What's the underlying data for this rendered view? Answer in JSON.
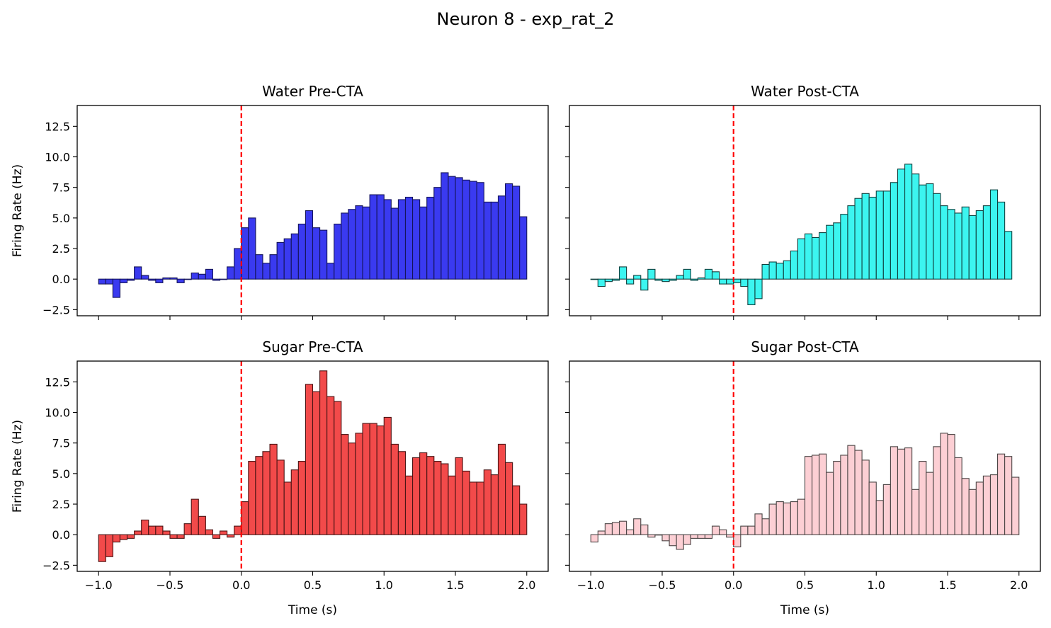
{
  "figure_title": "Neuron 8 - exp_rat_2",
  "chart_data": [
    {
      "type": "bar",
      "title": "Water Pre-CTA",
      "xlabel": "",
      "ylabel": "Firing Rate (Hz)",
      "xlim": [
        -1.15,
        2.15
      ],
      "ylim": [
        -3.0,
        14.2
      ],
      "xticks": [
        -1.0,
        -0.5,
        0.0,
        0.5,
        1.0,
        1.5,
        2.0
      ],
      "xtick_labels": [],
      "yticks": [
        -2.5,
        0.0,
        2.5,
        5.0,
        7.5,
        10.0,
        12.5
      ],
      "ytick_labels": [
        "−2.5",
        "0.0",
        "2.5",
        "5.0",
        "7.5",
        "10.0",
        "12.5"
      ],
      "bin_start": -1.0,
      "bin_width": 0.05,
      "values": [
        -0.4,
        -0.4,
        -1.5,
        -0.3,
        -0.1,
        1.0,
        0.3,
        -0.1,
        -0.3,
        0.1,
        0.1,
        -0.3,
        0.0,
        0.5,
        0.4,
        0.8,
        -0.1,
        0.0,
        1.0,
        2.5,
        4.2,
        5.0,
        2.0,
        1.3,
        2.0,
        3.0,
        3.3,
        3.7,
        4.5,
        5.6,
        4.2,
        4.0,
        1.3,
        4.5,
        5.4,
        5.7,
        6.0,
        5.9,
        6.9,
        6.9,
        6.5,
        5.8,
        6.5,
        6.7,
        6.5,
        5.9,
        6.7,
        7.5,
        8.7,
        8.4,
        8.3,
        8.1,
        8.0,
        7.9,
        6.3,
        6.3,
        6.8,
        7.8,
        7.6,
        5.1
      ],
      "vline_x": 0.0,
      "color": "#3a3af0"
    },
    {
      "type": "bar",
      "title": "Water Post-CTA",
      "xlabel": "",
      "ylabel": "",
      "xlim": [
        -1.15,
        2.15
      ],
      "ylim": [
        -3.0,
        14.2
      ],
      "xticks": [
        -1.0,
        -0.5,
        0.0,
        0.5,
        1.0,
        1.5,
        2.0
      ],
      "xtick_labels": [],
      "yticks": [
        -2.5,
        0.0,
        2.5,
        5.0,
        7.5,
        10.0,
        12.5
      ],
      "ytick_labels": [],
      "bin_start": -1.0,
      "bin_width": 0.05,
      "values": [
        0.0,
        -0.6,
        -0.2,
        -0.1,
        1.0,
        -0.4,
        0.3,
        -0.9,
        0.8,
        -0.1,
        -0.2,
        -0.1,
        0.3,
        0.8,
        -0.1,
        0.1,
        0.8,
        0.6,
        -0.4,
        -0.4,
        -0.3,
        -0.6,
        -2.1,
        -1.6,
        1.2,
        1.4,
        1.3,
        1.5,
        2.3,
        3.3,
        3.7,
        3.4,
        3.8,
        4.4,
        4.6,
        5.3,
        6.0,
        6.6,
        7.0,
        6.7,
        7.2,
        7.2,
        7.9,
        9.0,
        9.4,
        8.6,
        7.7,
        7.8,
        7.0,
        6.0,
        5.7,
        5.4,
        5.9,
        5.2,
        5.6,
        6.0,
        7.3,
        6.3,
        3.9
      ],
      "vline_x": 0.0,
      "color": "#3cf5f0"
    },
    {
      "type": "bar",
      "title": "Sugar Pre-CTA",
      "xlabel": "Time (s)",
      "ylabel": "Firing Rate (Hz)",
      "xlim": [
        -1.15,
        2.15
      ],
      "ylim": [
        -3.0,
        14.2
      ],
      "xticks": [
        -1.0,
        -0.5,
        0.0,
        0.5,
        1.0,
        1.5,
        2.0
      ],
      "xtick_labels": [
        "−1.0",
        "−0.5",
        "0.0",
        "0.5",
        "1.0",
        "1.5",
        "2.0"
      ],
      "yticks": [
        -2.5,
        0.0,
        2.5,
        5.0,
        7.5,
        10.0,
        12.5
      ],
      "ytick_labels": [
        "−2.5",
        "0.0",
        "2.5",
        "5.0",
        "7.5",
        "10.0",
        "12.5"
      ],
      "bin_start": -1.0,
      "bin_width": 0.05,
      "values": [
        -2.2,
        -1.8,
        -0.6,
        -0.4,
        -0.3,
        0.3,
        1.2,
        0.7,
        0.7,
        0.3,
        -0.3,
        -0.3,
        0.9,
        2.9,
        1.5,
        0.4,
        -0.3,
        0.3,
        -0.2,
        0.7,
        2.7,
        6.0,
        6.4,
        6.8,
        7.4,
        6.1,
        4.3,
        5.3,
        6.0,
        12.3,
        11.7,
        13.4,
        11.3,
        10.9,
        8.2,
        7.5,
        8.3,
        9.1,
        9.1,
        8.9,
        9.6,
        7.4,
        6.8,
        4.8,
        6.3,
        6.7,
        6.4,
        6.0,
        5.8,
        4.8,
        6.3,
        5.2,
        4.3,
        4.3,
        5.3,
        4.9,
        7.4,
        5.9,
        4.0,
        2.5
      ],
      "vline_x": 0.0,
      "color": "#f24a4a"
    },
    {
      "type": "bar",
      "title": "Sugar Post-CTA",
      "xlabel": "Time (s)",
      "ylabel": "",
      "xlim": [
        -1.15,
        2.15
      ],
      "ylim": [
        -3.0,
        14.2
      ],
      "xticks": [
        -1.0,
        -0.5,
        0.0,
        0.5,
        1.0,
        1.5,
        2.0
      ],
      "xtick_labels": [
        "−1.0",
        "−0.5",
        "0.0",
        "0.5",
        "1.0",
        "1.5",
        "2.0"
      ],
      "yticks": [
        -2.5,
        0.0,
        2.5,
        5.0,
        7.5,
        10.0,
        12.5
      ],
      "ytick_labels": [],
      "bin_start": -1.0,
      "bin_width": 0.05,
      "values": [
        -0.6,
        0.3,
        0.9,
        1.0,
        1.1,
        0.4,
        1.3,
        0.8,
        -0.2,
        0.0,
        -0.5,
        -0.9,
        -1.2,
        -0.8,
        -0.3,
        -0.3,
        -0.3,
        0.7,
        0.4,
        -0.2,
        -1.0,
        0.7,
        0.7,
        1.7,
        1.3,
        2.5,
        2.7,
        2.6,
        2.7,
        2.9,
        6.4,
        6.5,
        6.6,
        5.1,
        6.0,
        6.5,
        7.3,
        6.9,
        6.1,
        4.3,
        2.8,
        4.1,
        7.2,
        7.0,
        7.1,
        3.7,
        6.0,
        5.1,
        7.2,
        8.3,
        8.2,
        6.3,
        4.6,
        3.7,
        4.3,
        4.8,
        4.9,
        6.6,
        6.4,
        4.7
      ],
      "vline_x": 0.0,
      "color": "#fccfd4"
    }
  ]
}
